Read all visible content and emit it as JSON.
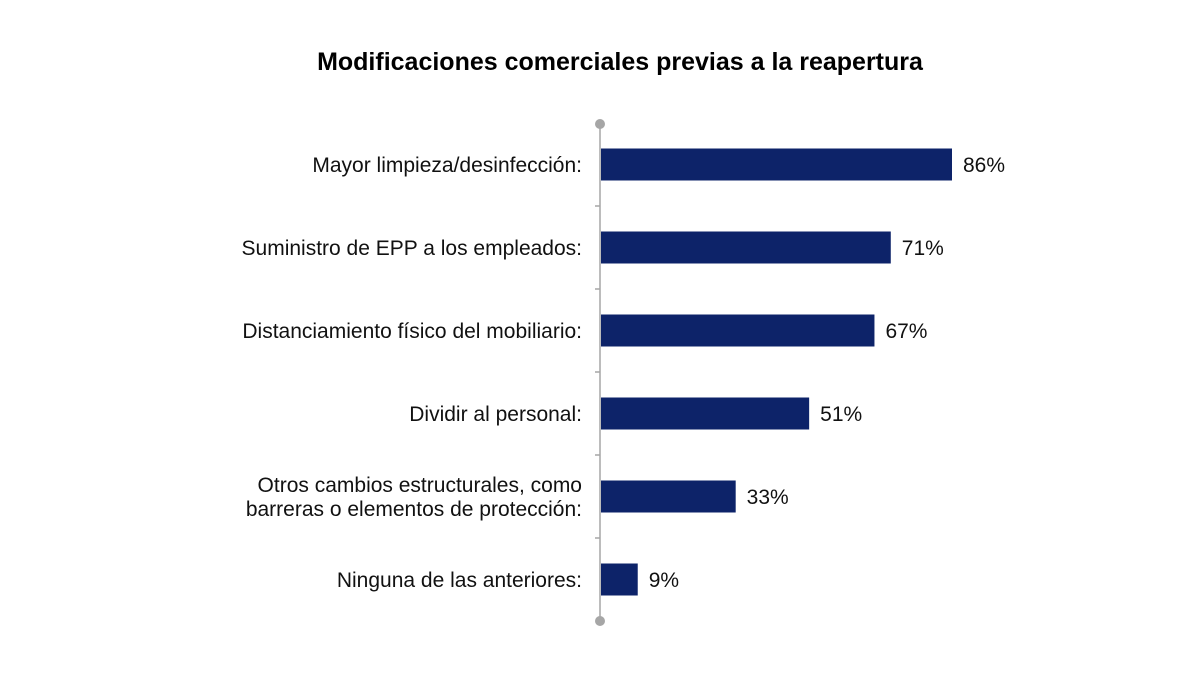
{
  "chart_data": {
    "type": "bar",
    "orientation": "horizontal",
    "title": "Modificaciones comerciales previas a la reapertura",
    "categories": [
      [
        "Mayor limpieza/desinfección:"
      ],
      [
        "Suministro de EPP a los empleados:"
      ],
      [
        "Distanciamiento físico del mobiliario:"
      ],
      [
        "Dividir al personal:"
      ],
      [
        "Otros cambios estructurales, como",
        "barreras o elementos de protección:"
      ],
      [
        "Ninguna de las anteriores:"
      ]
    ],
    "values": [
      86,
      71,
      67,
      51,
      33,
      9
    ],
    "value_labels": [
      "86%",
      "71%",
      "67%",
      "51%",
      "33%",
      "9%"
    ],
    "unit": "%",
    "xlim": [
      0,
      100
    ],
    "xlabel": "",
    "ylabel": "",
    "grid": false,
    "bar_color": "#0d2369",
    "axis_color": "#a6a6a6"
  }
}
